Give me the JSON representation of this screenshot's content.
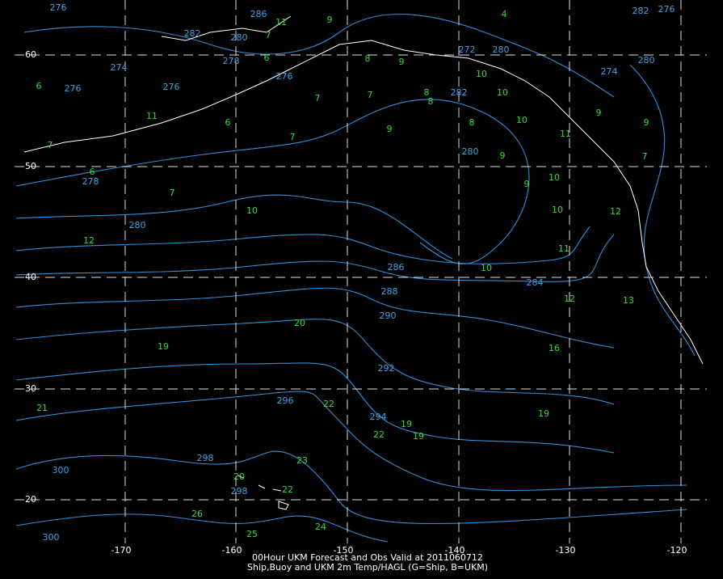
{
  "map": {
    "title_lines": [
      "00Hour UKM Forecast and Obs Valid at 2011060712",
      "Ship,Buoy and UKM 2m Temp/HAGL (G=Ship, B=UKM)"
    ],
    "lon_labels": [
      -170,
      -160,
      -150,
      -140,
      -130,
      -120
    ],
    "lat_labels": [
      60,
      50,
      40,
      30,
      20
    ],
    "contour_labels": [
      276,
      286,
      282,
      280,
      278,
      276,
      274,
      276,
      276,
      282,
      280,
      278,
      280,
      286,
      284,
      288,
      290,
      292,
      296,
      294,
      298,
      298,
      300,
      300,
      280,
      274,
      282,
      276,
      280,
      272
    ],
    "obs": [
      6,
      11,
      6,
      7,
      9,
      8,
      7,
      8,
      8,
      9,
      9,
      10,
      10,
      7,
      10,
      12,
      11,
      10,
      12,
      20,
      19,
      16,
      21,
      22,
      19,
      19,
      22,
      19,
      23,
      26,
      25,
      24,
      22,
      20,
      6,
      7,
      10,
      12,
      13,
      9,
      4,
      6,
      7,
      9,
      9,
      11,
      7,
      8,
      10,
      10,
      11,
      9,
      7
    ]
  }
}
